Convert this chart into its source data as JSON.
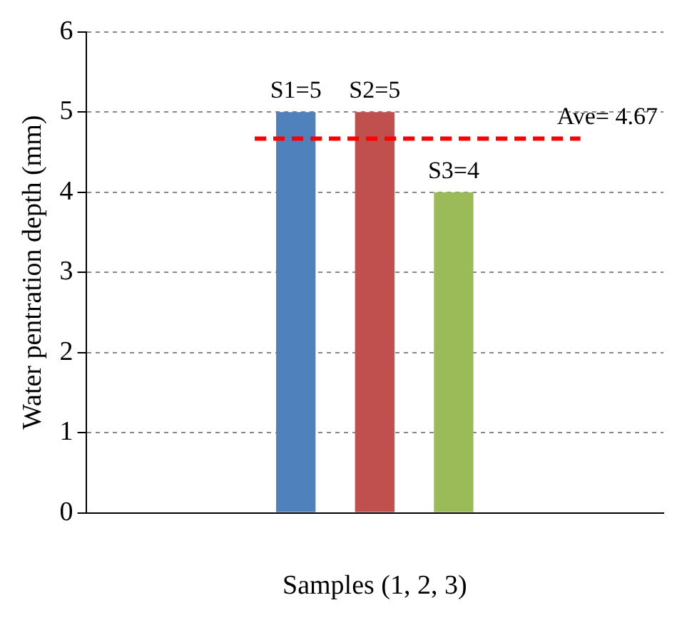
{
  "chart_data": {
    "type": "bar",
    "xlabel": "Samples (1, 2, 3)",
    "ylabel": "Water pentration depth (mm)",
    "categories": [
      null
    ],
    "series": [
      {
        "color": "#4f81bd",
        "values": [
          5
        ],
        "value_labels": [
          "S1=5"
        ]
      },
      {
        "color": "#c0504d",
        "values": [
          5
        ],
        "value_labels": [
          "S2=5"
        ]
      },
      {
        "color": "#9bbb59",
        "values": [
          4
        ],
        "value_labels": [
          "S3=4"
        ]
      }
    ],
    "ylim": [
      0,
      6
    ],
    "yticks": [
      0,
      1,
      2,
      3,
      4,
      5,
      6
    ],
    "grid": "y",
    "legend": false,
    "ref_lines": [
      {
        "axis": "y",
        "value": 4.67,
        "label": "Ave= 4.67",
        "color": "#ff0000",
        "line_style": "dashed"
      }
    ]
  }
}
